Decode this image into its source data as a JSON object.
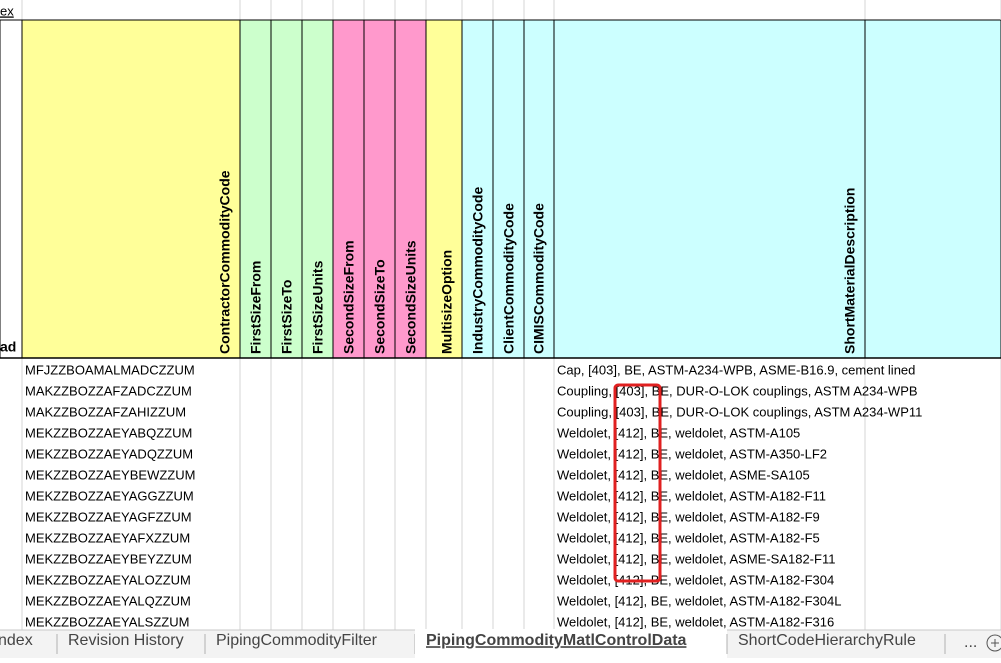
{
  "top_link": "ex",
  "left_header": "ad",
  "headers": [
    "ContractorCommodityCode",
    "FirstSizeFrom",
    "FirstSizeTo",
    "FirstSizeUnits",
    "SecondSizeFrom",
    "SecondSizeTo",
    "SecondSizeUnits",
    "MultisizeOption",
    "IndustryCommodityCode",
    "ClientCommodityCode",
    "CIMISCommodityCode",
    "ShortMaterialDescription"
  ],
  "rows": [
    [
      "MFJZZBOAMALMADCZZUM",
      "Cap, [403], BE, ASTM-A234-WPB, ASME-B16.9, cement lined"
    ],
    [
      "MAKZZBOZZAFZADCZZUM",
      "Coupling, [403], BE, DUR-O-LOK couplings, ASTM A234-WPB"
    ],
    [
      "MAKZZBOZZAFZAHIZZUM",
      "Coupling, [403], BE, DUR-O-LOK couplings, ASTM A234-WP11"
    ],
    [
      "MEKZZBOZZAEYABQZZUM",
      "Weldolet, [412], BE, weldolet, ASTM-A105"
    ],
    [
      "MEKZZBOZZAEYADQZZUM",
      "Weldolet, [412], BE, weldolet, ASTM-A350-LF2"
    ],
    [
      "MEKZZBOZZAEYBEWZZUM",
      "Weldolet, [412], BE, weldolet, ASME-SA105"
    ],
    [
      "MEKZZBOZZAEYAGGZZUM",
      "Weldolet, [412], BE, weldolet, ASTM-A182-F11"
    ],
    [
      "MEKZZBOZZAEYAGFZZUM",
      "Weldolet, [412], BE, weldolet, ASTM-A182-F9"
    ],
    [
      "MEKZZBOZZAEYAFXZZUM",
      "Weldolet, [412], BE, weldolet, ASTM-A182-F5"
    ],
    [
      "MEKZZBOZZAEYBEYZZUM",
      "Weldolet, [412], BE, weldolet, ASME-SA182-F11"
    ],
    [
      "MEKZZBOZZAEYALOZZUM",
      "Weldolet, [412], BE, weldolet, ASTM-A182-F304"
    ],
    [
      "MEKZZBOZZAEYALQZZUM",
      "Weldolet, [412], BE, weldolet, ASTM-A182-F304L"
    ],
    [
      "MEKZZBOZZAEYALSZZUM",
      "Weldolet, [412], BE, weldolet, ASTM-A182-F316"
    ]
  ],
  "tabs": [
    "ndex",
    "Revision History",
    "PipingCommodityFilter",
    "PipingCommodityMatlControlData",
    "ShortCodeHierarchyRule"
  ],
  "active_tab": 3,
  "more_tabs": "..."
}
